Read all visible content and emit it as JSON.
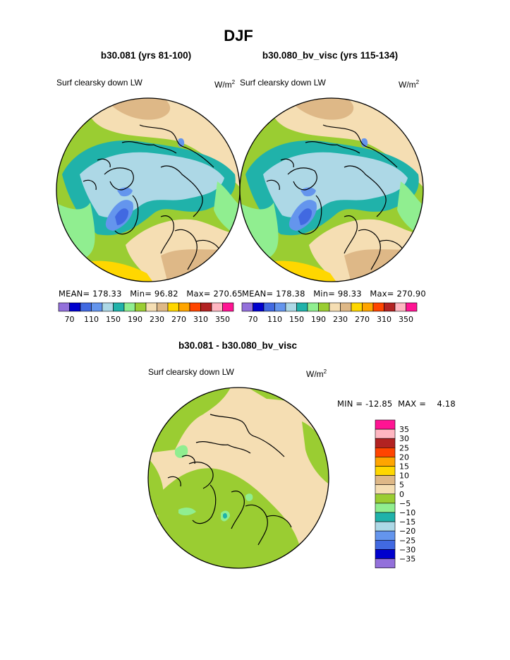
{
  "page": {
    "title": "DJF",
    "diff_title": "b30.081 - b30.080_bv_visc"
  },
  "panels": [
    {
      "case_title": "b30.081 (yrs 81-100)",
      "variable": "Surf clearsky down LW",
      "units_base": "W/m",
      "units_exp": "2",
      "mean_label": "MEAN=",
      "mean": "178.33",
      "min_label": "Min=",
      "min": "96.82",
      "max_label": "Max=",
      "max": "270.65"
    },
    {
      "case_title": "b30.080_bv_visc (yrs 115-134)",
      "variable": "Surf clearsky down LW",
      "units_base": "W/m",
      "units_exp": "2",
      "mean_label": "MEAN=",
      "mean": "178.38",
      "min_label": "Min=",
      "min": "98.33",
      "max_label": "Max=",
      "max": "270.90"
    }
  ],
  "field_colorbar": {
    "colors": [
      "#9370db",
      "#0000cd",
      "#4169e1",
      "#6495ed",
      "#add8e6",
      "#20b2aa",
      "#90ee90",
      "#9acd32",
      "#f5deb3",
      "#deb887",
      "#ffd700",
      "#ffa500",
      "#ff4500",
      "#b22222",
      "#ffb6c1",
      "#ff1493"
    ],
    "tick_labels": [
      "70",
      "110",
      "150",
      "190",
      "230",
      "270",
      "310",
      "350"
    ]
  },
  "diff_panel": {
    "variable": "Surf clearsky down LW",
    "units_base": "W/m",
    "units_exp": "2",
    "min_label": "MIN =",
    "min": "-12.85",
    "max_label": "MAX =",
    "max": "4.18",
    "colorbar": {
      "colors_top_to_bottom": [
        "#ff1493",
        "#ffb6c1",
        "#b22222",
        "#ff4500",
        "#ffa500",
        "#ffd700",
        "#deb887",
        "#f5deb3",
        "#9acd32",
        "#90ee90",
        "#20b2aa",
        "#add8e6",
        "#6495ed",
        "#4169e1",
        "#0000cd",
        "#9370db"
      ],
      "tick_labels": [
        "35",
        "30",
        "25",
        "20",
        "15",
        "10",
        "5",
        "0",
        "−5",
        "−10",
        "−15",
        "−20",
        "−25",
        "−30",
        "−35"
      ]
    }
  },
  "map_colors": {
    "tan": "#f5deb3",
    "tan_dark": "#deb887",
    "yellow": "#ffd700",
    "green_dark": "#9acd32",
    "green_light": "#90ee90",
    "teal": "#20b2aa",
    "light_blue": "#add8e6",
    "cornflower": "#6495ed",
    "royal_blue": "#4169e1"
  }
}
